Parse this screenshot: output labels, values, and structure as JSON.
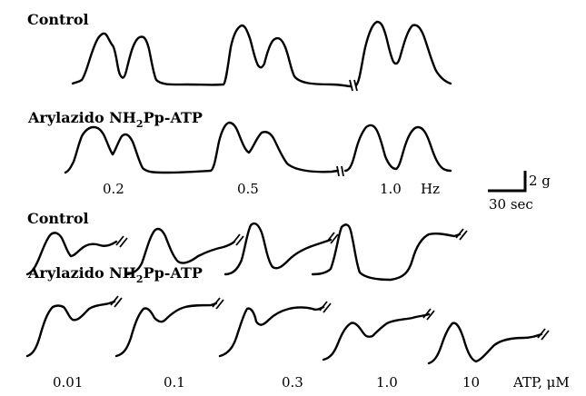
{
  "panel_top": {
    "row1_label": "Control",
    "row2_label_main": "Arylazido NH",
    "row2_label_sub": "2",
    "row2_label_tail": "Pp-ATP",
    "freq_ticks": [
      "0.2",
      "0.5",
      "1.0"
    ],
    "freq_unit": "Hz"
  },
  "scale_bar": {
    "force": "2 g",
    "time": "30 sec"
  },
  "panel_bottom": {
    "row1_label": "Control",
    "row2_label_main": "Arylazido NH",
    "row2_label_sub": "2",
    "row2_label_tail": "Pp-ATP",
    "conc_ticks": [
      "0.01",
      "0.1",
      "0.3",
      "1.0",
      "10"
    ],
    "conc_unit": "ATP, μM"
  }
}
